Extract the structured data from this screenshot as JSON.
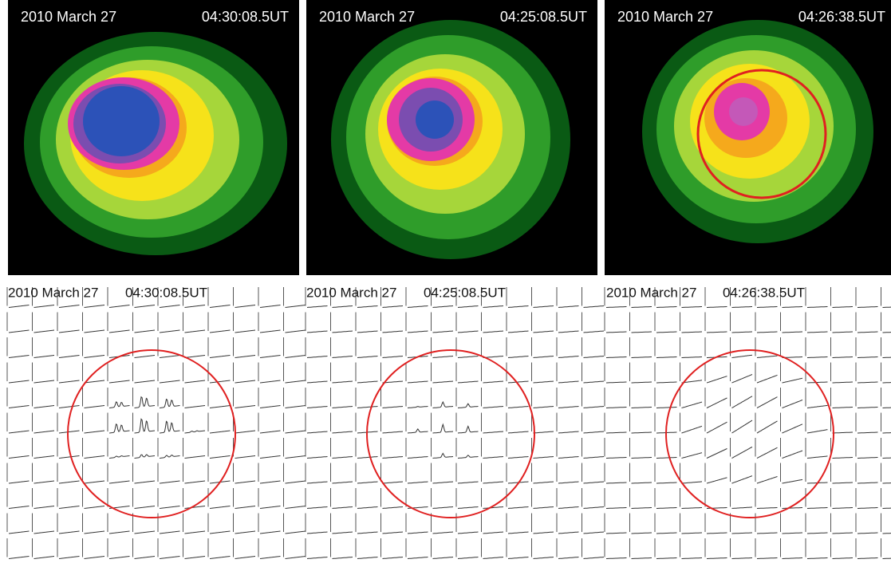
{
  "top_panels": [
    {
      "date": "2010 March 27",
      "time": "04:30:08.5UT"
    },
    {
      "date": "2010 March 27",
      "time": "04:25:08.5UT"
    },
    {
      "date": "2010 March 27",
      "time": "04:26:38.5UT"
    }
  ],
  "bottom_panels": [
    {
      "date": "2010 March 27",
      "time": "04:30:08.5UT"
    },
    {
      "date": "2010 March 27",
      "time": "04:25:08.5UT"
    },
    {
      "date": "2010 March 27",
      "time": "04:26:38.5UT"
    }
  ]
}
